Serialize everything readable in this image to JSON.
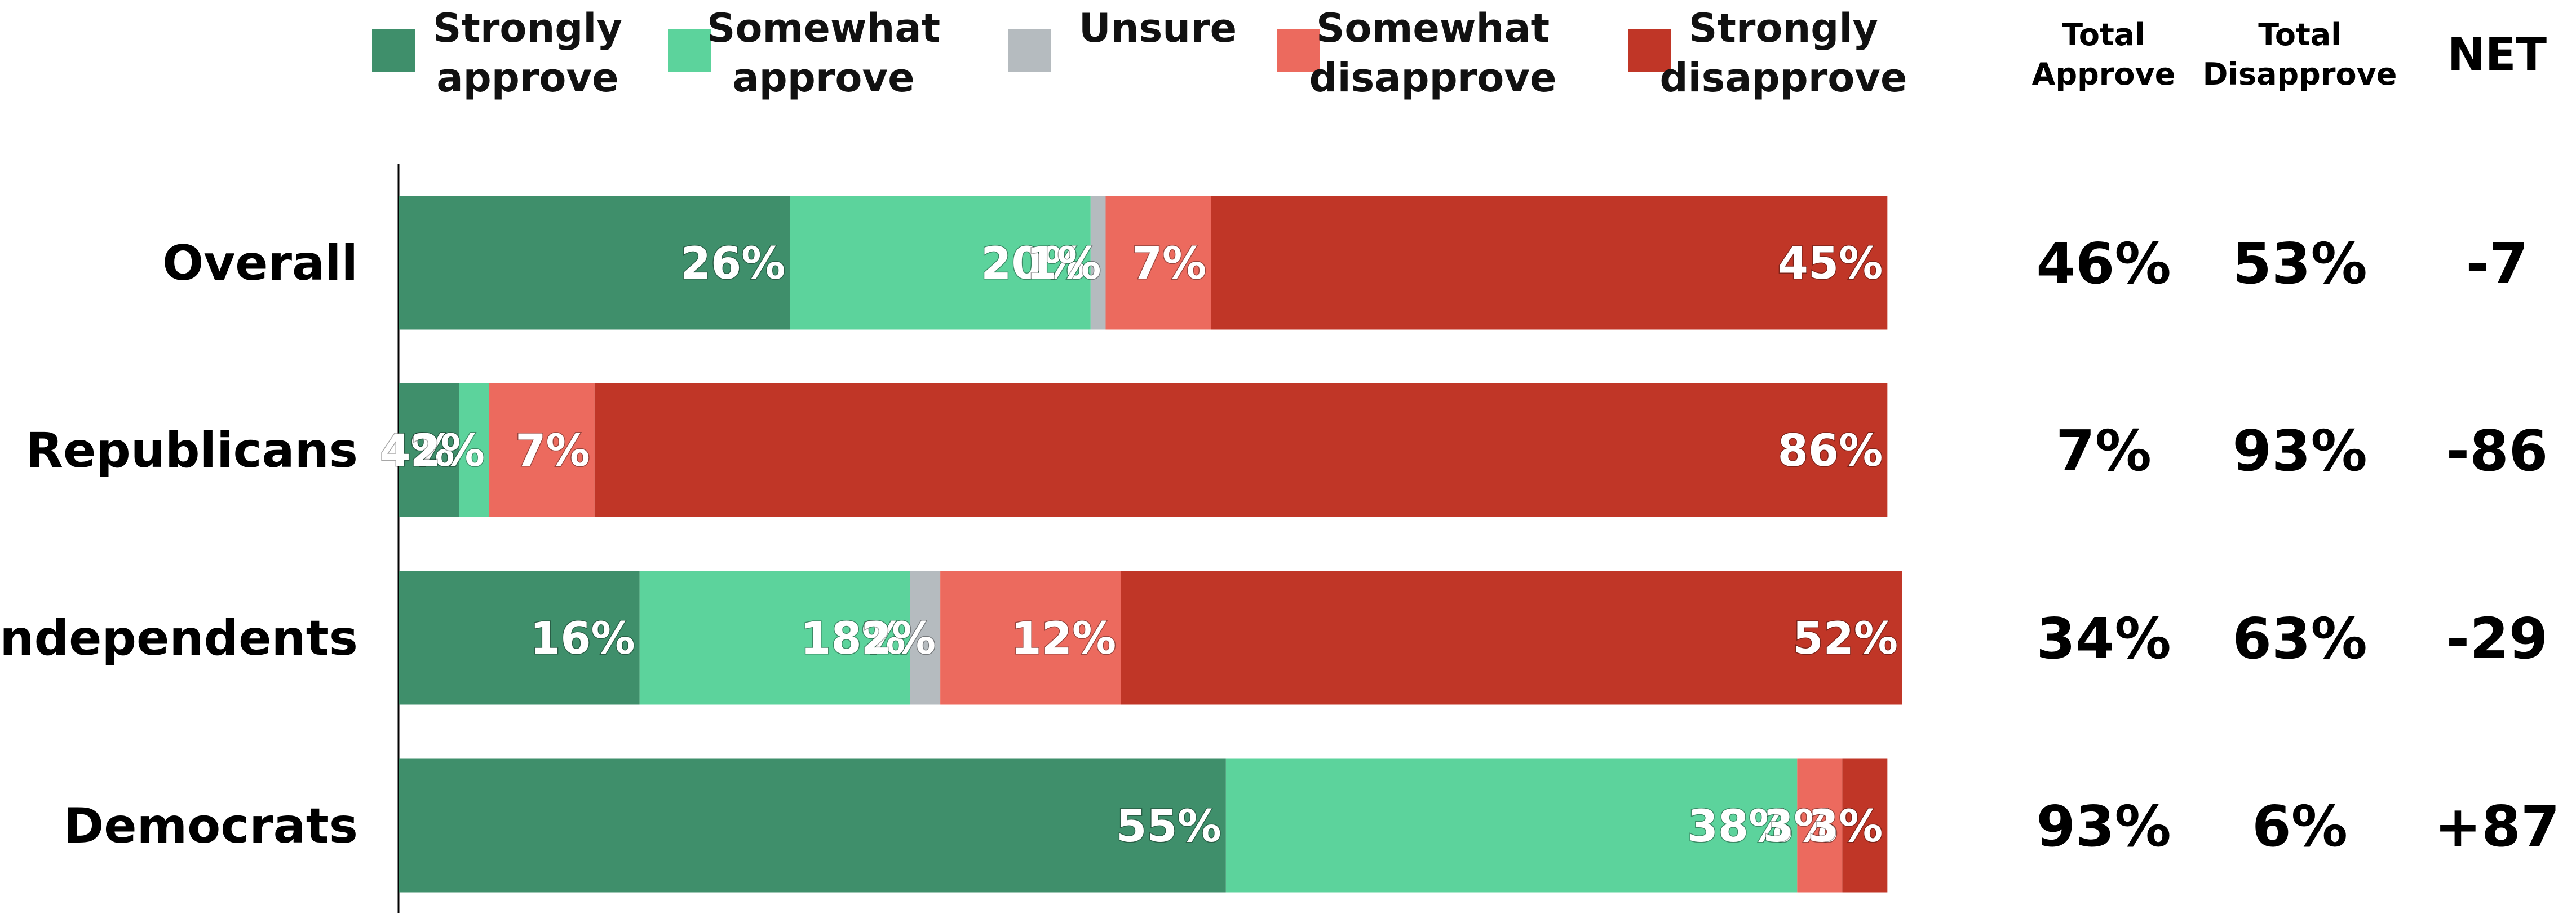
{
  "chart_data": {
    "type": "bar",
    "orientation": "horizontal",
    "stacked": true,
    "xlim": [
      0,
      100
    ],
    "grid": false,
    "legend_position": "top",
    "categories": [
      "Overall",
      "Republicans",
      "Independents",
      "Democrats"
    ],
    "series": [
      {
        "name": "Strongly approve",
        "legend_lines": [
          "Strongly",
          "approve"
        ],
        "color": "#3f8f6b",
        "values": [
          26,
          4,
          16,
          55
        ],
        "labels": [
          "26%",
          "4%",
          "16%",
          "55%"
        ]
      },
      {
        "name": "Somewhat approve",
        "legend_lines": [
          "Somewhat",
          "approve"
        ],
        "color": "#5cd39c",
        "values": [
          20,
          2,
          18,
          38
        ],
        "labels": [
          "20%",
          "2%",
          "18%",
          "38%"
        ]
      },
      {
        "name": "Unsure",
        "legend_lines": [
          "Unsure"
        ],
        "color": "#b5bbbf",
        "values": [
          1,
          0,
          2,
          0
        ],
        "labels": [
          "1%",
          "",
          "2%",
          ""
        ]
      },
      {
        "name": "Somewhat disapprove",
        "legend_lines": [
          "Somewhat",
          "disapprove"
        ],
        "color": "#ec6a5e",
        "values": [
          7,
          7,
          12,
          3
        ],
        "labels": [
          "7%",
          "7%",
          "12%",
          "3%"
        ]
      },
      {
        "name": "Strongly disapprove",
        "legend_lines": [
          "Strongly",
          "disapprove"
        ],
        "color": "#c03627",
        "values": [
          45,
          86,
          52,
          3
        ],
        "labels": [
          "45%",
          "86%",
          "52%",
          "3%"
        ]
      }
    ],
    "summary_columns": [
      {
        "header_lines": [
          "Total",
          "Approve"
        ],
        "values": [
          "46%",
          "7%",
          "34%",
          "93%"
        ]
      },
      {
        "header_lines": [
          "Total",
          "Disapprove"
        ],
        "values": [
          "53%",
          "93%",
          "63%",
          "6%"
        ]
      },
      {
        "header_lines": [
          "NET"
        ],
        "values": [
          "-7",
          "-86",
          "-29",
          "+87"
        ]
      }
    ]
  }
}
